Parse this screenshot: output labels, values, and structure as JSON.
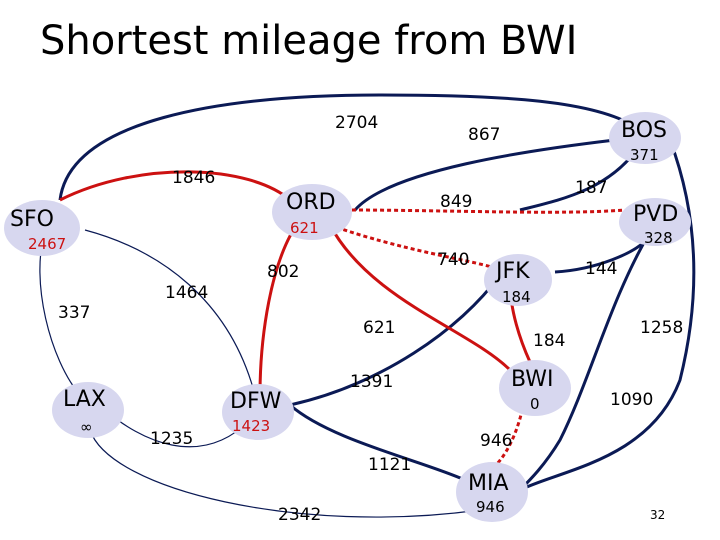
{
  "title": "Shortest mileage from BWI",
  "slide_number": "32",
  "colors": {
    "node": "#d7d7ef",
    "black_edge": "#0b1a55",
    "red_edge": "#cc1111",
    "text": "#000000",
    "dist": "#cc1111"
  },
  "nodes": [
    {
      "id": "bos",
      "name": "BOS",
      "dist": "371"
    },
    {
      "id": "pvd",
      "name": "PVD",
      "dist": "328"
    },
    {
      "id": "ord",
      "name": "ORD",
      "dist": "621"
    },
    {
      "id": "jfk",
      "name": "JFK",
      "dist": "184"
    },
    {
      "id": "sfo",
      "name": "SFO",
      "dist": "2467"
    },
    {
      "id": "bwi",
      "name": "BWI",
      "dist": "0"
    },
    {
      "id": "lax",
      "name": "LAX",
      "dist": "∞"
    },
    {
      "id": "dfw",
      "name": "DFW",
      "dist": "1423"
    },
    {
      "id": "mia",
      "name": "MIA",
      "dist": "946"
    }
  ],
  "edge_weights": {
    "sfo_bos": "2704",
    "ord_bos": "867",
    "sfo_ord": "1846",
    "ord_pvd": "849",
    "jfk_bos": "187",
    "ord_jfk": "740",
    "pvd_jfk": "144",
    "sfo_lax": "337",
    "sfo_dfw": "1464",
    "ord_dfw": "802",
    "ord_bwi": "621",
    "jfk_bwi": "184",
    "bos_mia": "1258",
    "dfw_jfk": "1391",
    "lax_dfw": "1235",
    "dfw_mia": "1121",
    "bwi_mia": "946",
    "lax_mia": "2342",
    "pvd_mia": "1090"
  }
}
